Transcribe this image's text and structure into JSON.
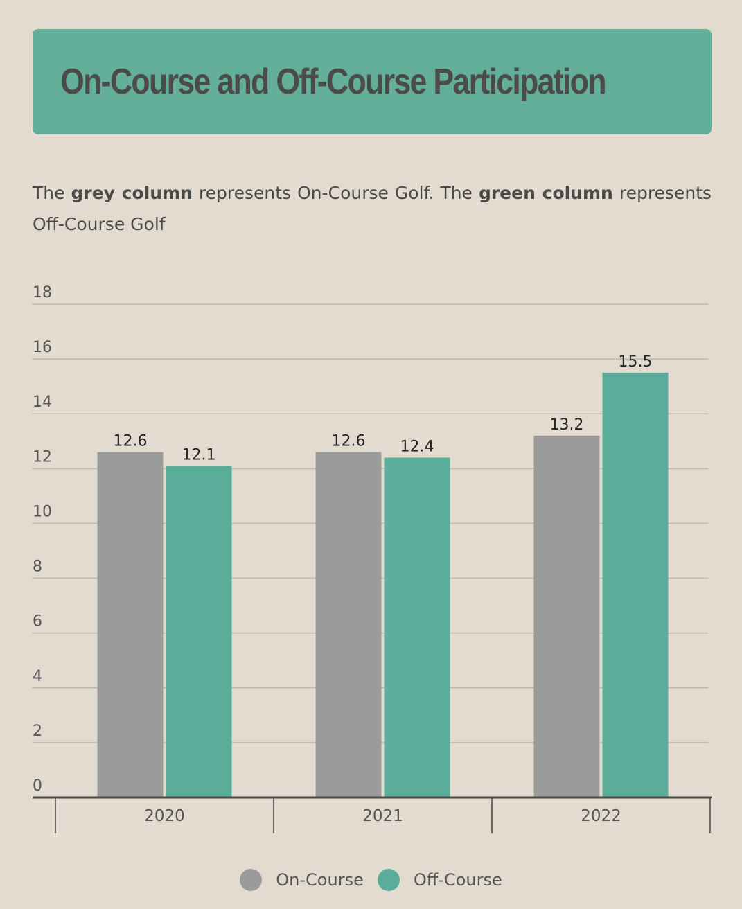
{
  "header": {
    "title": "On-Course and Off-Course Participation"
  },
  "description": {
    "part1": "The ",
    "bold1": "grey column",
    "part2": " represents On-Course Golf. The ",
    "bold2": "green column",
    "part3": " represents Off-Course Golf"
  },
  "colors": {
    "on_course": "#9b9b9b",
    "off_course": "#5aad99",
    "grid": "#bfb8ad",
    "axis": "#4a4a48"
  },
  "chart_data": {
    "type": "bar",
    "title": "On-Course and Off-Course Participation",
    "categories": [
      "2020",
      "2021",
      "2022"
    ],
    "series": [
      {
        "name": "On-Course",
        "values": [
          12.6,
          12.6,
          13.2
        ]
      },
      {
        "name": "Off-Course",
        "values": [
          12.1,
          12.4,
          15.5
        ]
      }
    ],
    "ylim": [
      0,
      18
    ],
    "yticks": [
      0,
      2,
      4,
      6,
      8,
      10,
      12,
      14,
      16,
      18
    ],
    "grid": true,
    "legend_position": "bottom-center",
    "xlabel": "",
    "ylabel": ""
  },
  "legend": [
    {
      "label": "On-Course"
    },
    {
      "label": "Off-Course"
    }
  ]
}
